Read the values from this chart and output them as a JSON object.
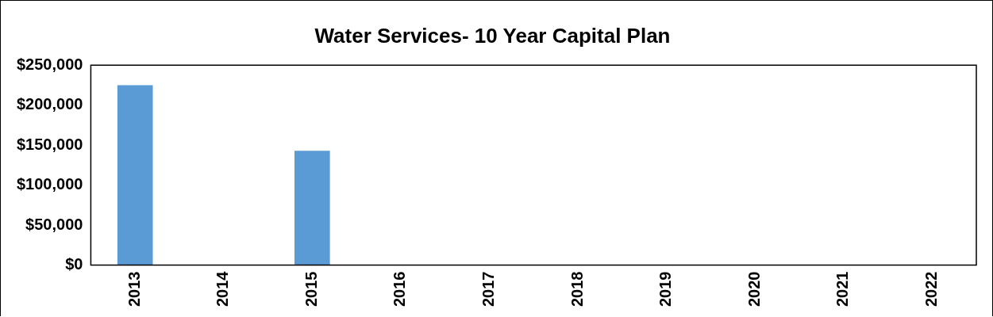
{
  "chart_data": {
    "type": "bar",
    "title": "Water Services- 10 Year Capital Plan",
    "categories": [
      "2013",
      "2014",
      "2015",
      "2016",
      "2017",
      "2018",
      "2019",
      "2020",
      "2021",
      "2022"
    ],
    "values": [
      225000,
      0,
      143000,
      0,
      0,
      0,
      0,
      0,
      0,
      0
    ],
    "color": "#5b9bd5",
    "ylim": [
      0,
      250000
    ],
    "yticks": [
      {
        "value": 0,
        "label": "$0"
      },
      {
        "value": 50000,
        "label": "$50,000"
      },
      {
        "value": 100000,
        "label": "$100,000"
      },
      {
        "value": 150000,
        "label": "$150,000"
      },
      {
        "value": 200000,
        "label": "$200,000"
      },
      {
        "value": 250000,
        "label": "$250,000"
      }
    ],
    "grid": false,
    "legend": false
  }
}
